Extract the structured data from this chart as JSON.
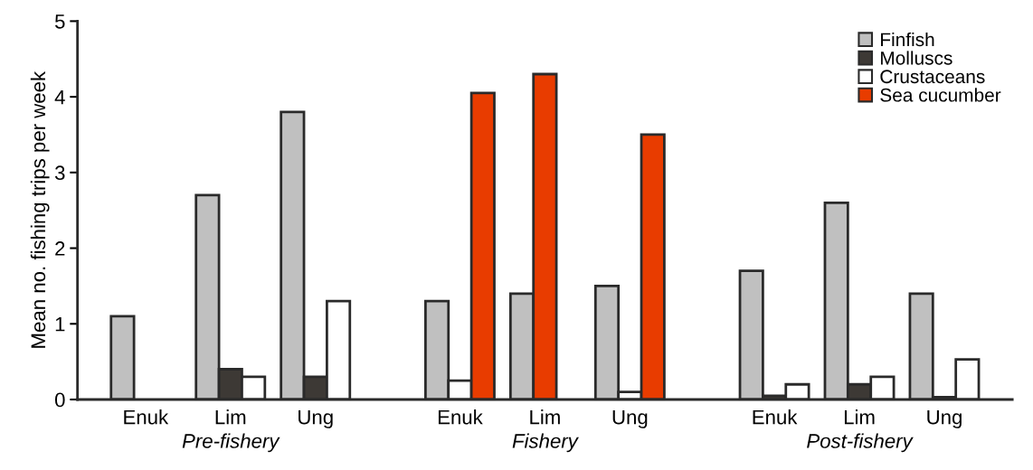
{
  "chart_data": {
    "type": "bar",
    "ylabel": "Mean no. fishing trips per week",
    "categories": [
      "Enuk",
      "Lim",
      "Ung",
      "Enuk",
      "Lim",
      "Ung",
      "Enuk",
      "Lim",
      "Ung"
    ],
    "series": [
      {
        "name": "Finfish",
        "color": "#c0c0c0",
        "values": [
          1.1,
          2.7,
          3.8,
          1.3,
          1.4,
          1.5,
          1.7,
          2.6,
          1.4
        ]
      },
      {
        "name": "Molluscs",
        "color": "#3d3935",
        "values": [
          null,
          0.4,
          0.3,
          null,
          null,
          null,
          0.05,
          0.2,
          0.03
        ]
      },
      {
        "name": "Crustaceans",
        "color": "#ffffff",
        "values": [
          null,
          0.3,
          1.3,
          0.25,
          null,
          0.1,
          0.2,
          0.3,
          0.53
        ]
      },
      {
        "name": "Sea cucumber",
        "color": "#e83c00",
        "values": [
          null,
          null,
          null,
          4.05,
          4.3,
          3.5,
          null,
          null,
          null
        ]
      }
    ],
    "annotations": [
      "Pre-fishery",
      "Fishery",
      "Post-fishery"
    ],
    "ylim": [
      0,
      5
    ],
    "yticks": [
      0,
      1,
      2,
      3,
      4,
      5
    ],
    "grid": false,
    "legend": "top right"
  }
}
